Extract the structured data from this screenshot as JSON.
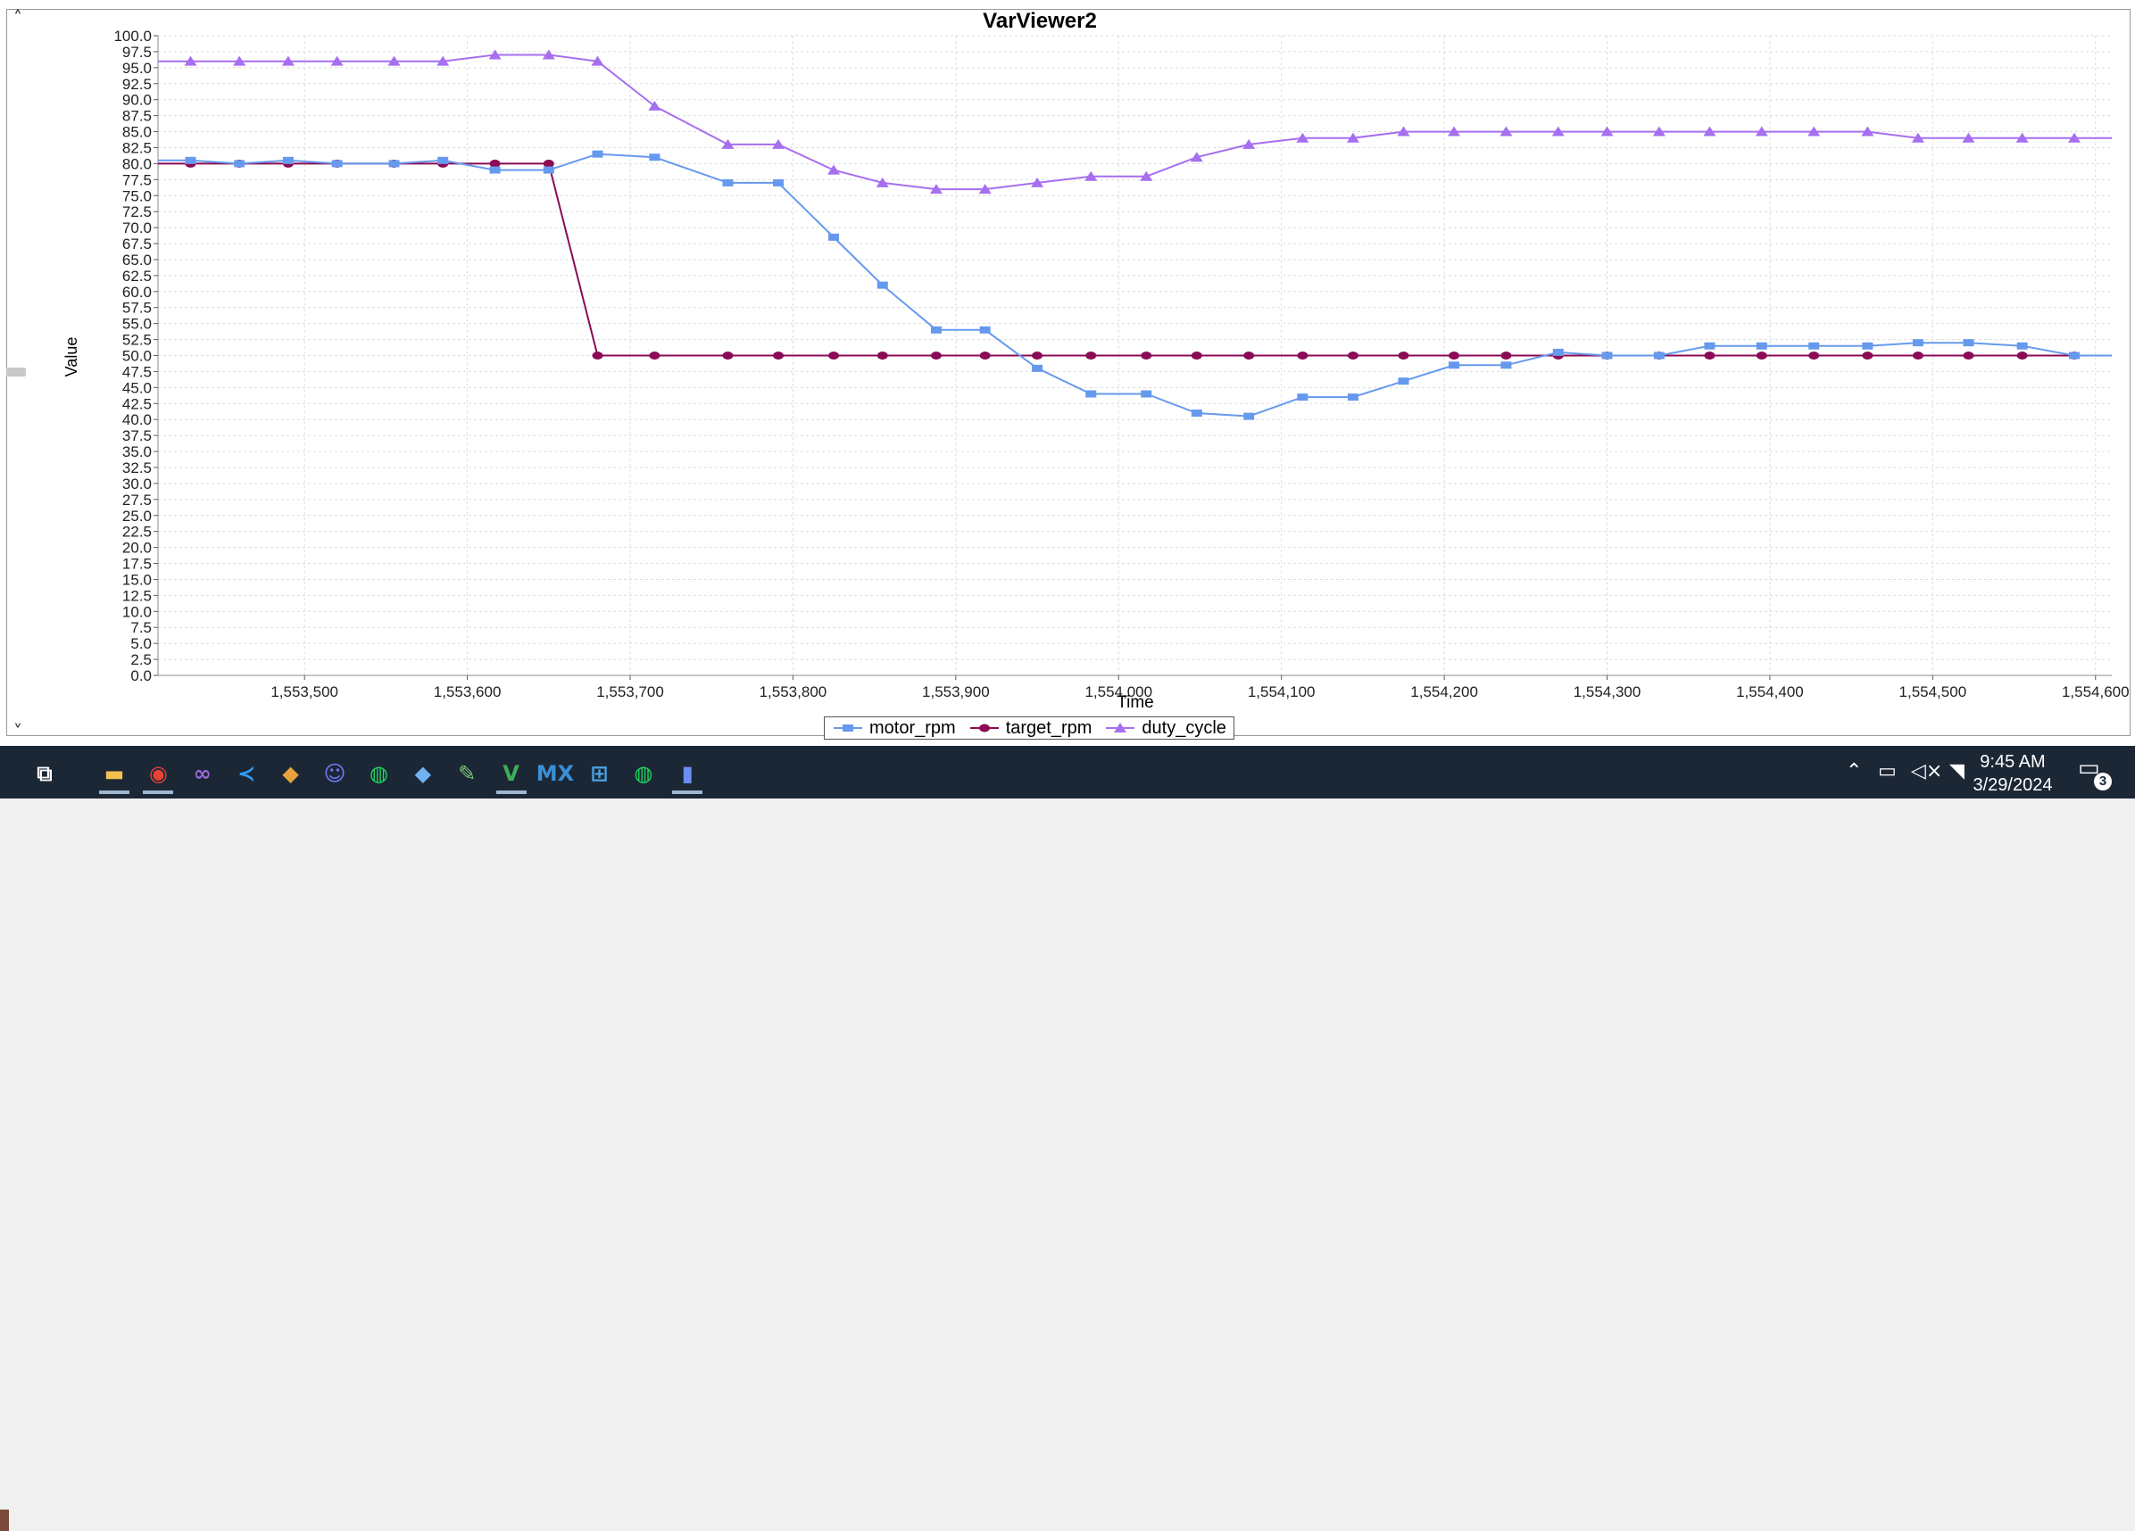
{
  "window": {
    "title": "VarViewer2"
  },
  "chart_data": {
    "type": "line",
    "title": "VarViewer2",
    "xlabel": "Time",
    "ylabel": "Value",
    "xlim": [
      1553410,
      1554610
    ],
    "ylim": [
      0,
      100
    ],
    "ytick_step": 2.5,
    "xticks": [
      1553500,
      1553600,
      1553700,
      1553800,
      1553900,
      1554000,
      1554100,
      1554200,
      1554300,
      1554400,
      1554500,
      1554600
    ],
    "xtick_labels": [
      "1,553,500",
      "1,553,600",
      "1,553,700",
      "1,553,800",
      "1,553,900",
      "1,554,000",
      "1,554,100",
      "1,554,200",
      "1,554,300",
      "1,554,400",
      "1,554,500",
      "1,554,600"
    ],
    "grid": true,
    "legend_position": "bottom-center",
    "series": [
      {
        "name": "motor_rpm",
        "color": "#6699ee",
        "marker": "square",
        "x": [
          1553410,
          1553430,
          1553460,
          1553490,
          1553520,
          1553555,
          1553585,
          1553617,
          1553650,
          1553680,
          1553715,
          1553760,
          1553791,
          1553825,
          1553855,
          1553888,
          1553918,
          1553950,
          1553983,
          1554017,
          1554048,
          1554080,
          1554113,
          1554144,
          1554175,
          1554206,
          1554238,
          1554270,
          1554300,
          1554332,
          1554363,
          1554395,
          1554427,
          1554460,
          1554491,
          1554522,
          1554555,
          1554587,
          1554610
        ],
        "y": [
          80.5,
          80.5,
          80,
          80.5,
          80,
          80,
          80.5,
          79,
          79,
          81.5,
          81,
          77,
          77,
          68.5,
          61,
          54,
          54,
          48,
          44,
          44,
          41,
          40.5,
          43.5,
          43.5,
          46,
          48.5,
          48.5,
          50.5,
          50,
          50,
          51.5,
          51.5,
          51.5,
          51.5,
          52,
          52,
          51.5,
          50,
          50
        ]
      },
      {
        "name": "target_rpm",
        "color": "#8b0a55",
        "marker": "circle",
        "x": [
          1553410,
          1553430,
          1553460,
          1553490,
          1553520,
          1553555,
          1553585,
          1553617,
          1553650,
          1553680,
          1553715,
          1553760,
          1553791,
          1553825,
          1553855,
          1553888,
          1553918,
          1553950,
          1553983,
          1554017,
          1554048,
          1554080,
          1554113,
          1554144,
          1554175,
          1554206,
          1554238,
          1554270,
          1554300,
          1554332,
          1554363,
          1554395,
          1554427,
          1554460,
          1554491,
          1554522,
          1554555,
          1554587,
          1554610
        ],
        "y": [
          80,
          80,
          80,
          80,
          80,
          80,
          80,
          80,
          80,
          50,
          50,
          50,
          50,
          50,
          50,
          50,
          50,
          50,
          50,
          50,
          50,
          50,
          50,
          50,
          50,
          50,
          50,
          50,
          50,
          50,
          50,
          50,
          50,
          50,
          50,
          50,
          50,
          50,
          50
        ]
      },
      {
        "name": "duty_cycle",
        "color": "#a66ff0",
        "marker": "triangle",
        "x": [
          1553410,
          1553430,
          1553460,
          1553490,
          1553520,
          1553555,
          1553585,
          1553617,
          1553650,
          1553680,
          1553715,
          1553760,
          1553791,
          1553825,
          1553855,
          1553888,
          1553918,
          1553950,
          1553983,
          1554017,
          1554048,
          1554080,
          1554113,
          1554144,
          1554175,
          1554206,
          1554238,
          1554270,
          1554300,
          1554332,
          1554363,
          1554395,
          1554427,
          1554460,
          1554491,
          1554522,
          1554555,
          1554587,
          1554610
        ],
        "y": [
          96,
          96,
          96,
          96,
          96,
          96,
          96,
          97,
          97,
          96,
          89,
          83,
          83,
          79,
          77,
          76,
          76,
          77,
          78,
          78,
          81,
          83,
          84,
          84,
          85,
          85,
          85,
          85,
          85,
          85,
          85,
          85,
          85,
          85,
          84,
          84,
          84,
          84,
          84
        ]
      }
    ]
  },
  "taskbar": {
    "icons": [
      {
        "name": "task-view-icon",
        "glyph": "⧉",
        "color": "#ffffff",
        "active": false
      },
      {
        "name": "file-explorer-icon",
        "glyph": "▬",
        "color": "#f2c14e",
        "active": true
      },
      {
        "name": "chrome-icon",
        "glyph": "◉",
        "color": "#e94235",
        "active": true
      },
      {
        "name": "visual-studio-icon",
        "glyph": "∞",
        "color": "#9b6ad6",
        "active": false
      },
      {
        "name": "vscode-icon",
        "glyph": "≺",
        "color": "#2f9cf0",
        "active": false
      },
      {
        "name": "git-icon",
        "glyph": "◆",
        "color": "#e8a43a",
        "active": false
      },
      {
        "name": "discord-icon",
        "glyph": "☺",
        "color": "#6e7cf2",
        "active": false
      },
      {
        "name": "spotify-icon",
        "glyph": "◍",
        "color": "#1ed760",
        "active": false
      },
      {
        "name": "inkscape-icon",
        "glyph": "◆",
        "color": "#6fb3f5",
        "active": false
      },
      {
        "name": "notepad-icon",
        "glyph": "✎",
        "color": "#7cc576",
        "active": false
      },
      {
        "name": "vs-editor-icon",
        "glyph": "V",
        "color": "#3fae5a",
        "active": true
      },
      {
        "name": "stm32cubemx-icon",
        "glyph": "MX",
        "color": "#3a8fd6",
        "active": false
      },
      {
        "name": "network-icon",
        "glyph": "⊞",
        "color": "#4aa3df",
        "active": false
      },
      {
        "name": "spotify-2-icon",
        "glyph": "◍",
        "color": "#1ed760",
        "active": false
      },
      {
        "name": "varviewer-icon",
        "glyph": "▮",
        "color": "#6b8cf2",
        "active": true
      }
    ],
    "tray": {
      "chevron_icon": "chevron-up-icon",
      "battery_icon": "battery-icon",
      "volume_icon": "volume-muted-icon",
      "wifi_icon": "wifi-icon"
    },
    "time": "9:45 AM",
    "date": "3/29/2024",
    "notification_count": "3"
  }
}
